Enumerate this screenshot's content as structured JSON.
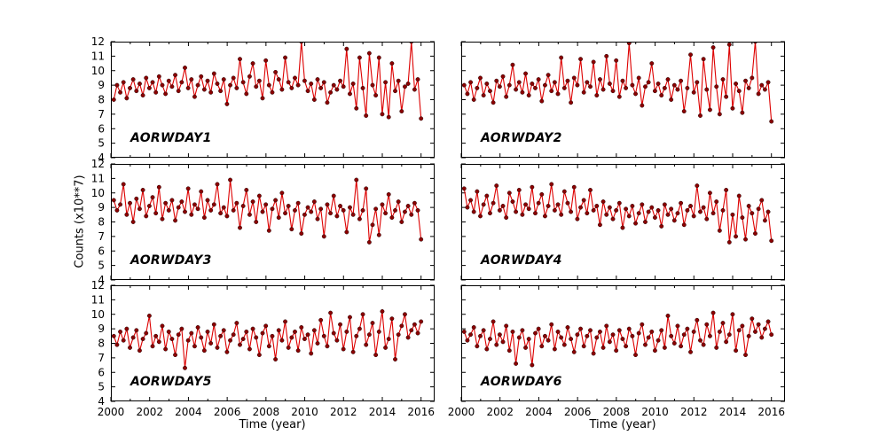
{
  "figure": {
    "xlabel": "Time (year)",
    "ylabel": "Counts (x10**7)",
    "background": "#ffffff",
    "colors": {
      "line": "#dd0000",
      "marker": "#8b0000",
      "marker_edge": "#200000",
      "axis": "#000000"
    }
  },
  "chart_data": {
    "type": "line",
    "x_range": [
      2000.15,
      2016.0
    ],
    "axis": {
      "xlim": [
        2000,
        2016.7
      ],
      "ylim": [
        4,
        12
      ],
      "xticks": [
        2000,
        2002,
        2004,
        2006,
        2008,
        2010,
        2012,
        2014,
        2016
      ],
      "xminor": [
        2001,
        2003,
        2005,
        2007,
        2009,
        2011,
        2013,
        2015
      ],
      "yticks": [
        4,
        5,
        6,
        7,
        8,
        9,
        10,
        11,
        12
      ]
    },
    "panels": [
      {
        "label": "AORWDAY1",
        "values": [
          8.0,
          9.0,
          8.5,
          9.2,
          8.1,
          8.8,
          9.4,
          8.6,
          9.1,
          8.3,
          9.5,
          8.8,
          9.2,
          8.5,
          9.6,
          9.0,
          8.4,
          9.3,
          8.9,
          9.7,
          8.6,
          9.2,
          10.2,
          8.8,
          9.4,
          8.2,
          9.0,
          9.6,
          8.7,
          9.3,
          8.5,
          9.8,
          9.1,
          8.6,
          9.4,
          7.7,
          9.0,
          9.5,
          8.8,
          10.8,
          9.2,
          8.4,
          9.6,
          10.5,
          8.9,
          9.3,
          8.1,
          10.7,
          9.0,
          8.5,
          9.9,
          9.4,
          8.7,
          10.9,
          9.2,
          8.8,
          9.5,
          9.0,
          12.0,
          9.3,
          8.6,
          9.1,
          8.0,
          9.4,
          8.8,
          9.2,
          7.8,
          8.5,
          9.0,
          8.7,
          9.3,
          8.9,
          11.5,
          8.4,
          9.1,
          7.4,
          10.9,
          8.8,
          6.9,
          11.2,
          9.0,
          8.3,
          10.9,
          7.0,
          9.2,
          6.8,
          10.5,
          8.6,
          9.3,
          7.2,
          8.9,
          9.1,
          12.0,
          8.7,
          9.4,
          6.7
        ]
      },
      {
        "label": "AORWDAY2",
        "values": [
          9.0,
          8.4,
          9.2,
          8.0,
          8.8,
          9.5,
          8.3,
          9.1,
          8.6,
          7.8,
          9.3,
          8.9,
          9.6,
          8.2,
          9.0,
          10.4,
          8.7,
          9.2,
          8.5,
          9.8,
          8.3,
          9.1,
          8.8,
          9.4,
          7.9,
          9.0,
          9.7,
          8.6,
          9.2,
          8.4,
          10.9,
          8.8,
          9.3,
          7.8,
          9.5,
          9.0,
          10.8,
          8.5,
          9.2,
          8.9,
          10.6,
          8.3,
          9.4,
          8.7,
          11.0,
          9.1,
          8.6,
          10.7,
          8.2,
          9.3,
          8.8,
          11.9,
          9.0,
          8.4,
          9.5,
          7.6,
          8.9,
          9.2,
          10.5,
          8.6,
          9.1,
          8.3,
          8.8,
          9.4,
          8.0,
          9.0,
          8.7,
          9.3,
          7.2,
          8.8,
          11.1,
          8.5,
          9.2,
          6.9,
          10.8,
          8.7,
          7.3,
          11.6,
          8.9,
          7.0,
          9.4,
          8.2,
          11.8,
          7.4,
          9.1,
          8.6,
          7.1,
          9.3,
          8.8,
          9.5,
          12.0,
          8.4,
          9.0,
          8.7,
          9.2,
          6.5
        ]
      },
      {
        "label": "AORWDAY3",
        "values": [
          9.5,
          8.8,
          9.2,
          10.6,
          8.5,
          9.3,
          8.0,
          9.6,
          8.9,
          10.2,
          8.4,
          9.1,
          9.7,
          8.6,
          10.4,
          8.2,
          9.3,
          8.8,
          9.5,
          8.1,
          9.0,
          9.4,
          8.7,
          10.3,
          8.5,
          9.2,
          8.9,
          10.1,
          8.3,
          9.5,
          8.8,
          9.2,
          10.6,
          8.6,
          9.0,
          8.4,
          10.9,
          8.8,
          9.3,
          7.6,
          9.1,
          10.2,
          8.5,
          9.4,
          8.0,
          9.8,
          8.7,
          9.2,
          7.4,
          8.9,
          9.5,
          8.3,
          10.0,
          8.6,
          9.1,
          7.5,
          8.8,
          9.3,
          7.2,
          8.5,
          9.0,
          8.7,
          9.4,
          8.2,
          8.9,
          7.0,
          9.2,
          8.6,
          9.8,
          8.4,
          9.1,
          8.8,
          7.3,
          9.0,
          8.5,
          10.9,
          8.2,
          8.8,
          10.3,
          6.6,
          7.8,
          8.9,
          7.1,
          9.2,
          8.6,
          9.9,
          8.3,
          8.8,
          9.4,
          8.0,
          8.7,
          9.1,
          8.5,
          9.3,
          8.8,
          6.8
        ]
      },
      {
        "label": "AORWDAY4",
        "values": [
          10.3,
          9.0,
          9.5,
          8.7,
          10.1,
          8.4,
          9.2,
          9.8,
          8.6,
          9.3,
          10.5,
          8.8,
          9.1,
          8.3,
          10.0,
          9.4,
          8.7,
          10.2,
          8.5,
          9.2,
          8.9,
          10.4,
          8.6,
          9.3,
          9.9,
          8.4,
          9.1,
          10.6,
          8.8,
          9.2,
          8.5,
          10.1,
          9.3,
          8.7,
          10.4,
          8.2,
          9.0,
          9.5,
          8.6,
          10.2,
          8.8,
          9.1,
          7.8,
          9.4,
          8.5,
          9.0,
          8.2,
          8.8,
          9.3,
          7.6,
          8.9,
          8.4,
          9.1,
          7.9,
          8.6,
          9.2,
          8.0,
          8.7,
          9.0,
          8.3,
          8.8,
          7.7,
          9.2,
          8.5,
          8.9,
          8.1,
          8.6,
          9.3,
          7.8,
          8.8,
          9.1,
          8.4,
          10.5,
          8.7,
          9.0,
          8.2,
          10.0,
          8.6,
          9.4,
          7.4,
          8.8,
          10.2,
          6.6,
          8.5,
          7.0,
          9.8,
          8.3,
          6.8,
          9.1,
          8.6,
          7.2,
          8.9,
          9.5,
          8.1,
          8.7,
          6.7
        ]
      },
      {
        "label": "AORWDAY5",
        "values": [
          8.5,
          7.9,
          8.8,
          8.2,
          9.0,
          7.7,
          8.4,
          8.9,
          7.5,
          8.3,
          8.7,
          9.9,
          7.8,
          8.5,
          8.1,
          9.2,
          7.6,
          8.8,
          8.3,
          7.2,
          8.6,
          9.0,
          6.3,
          8.2,
          8.7,
          7.8,
          9.1,
          8.4,
          7.5,
          8.8,
          8.0,
          9.3,
          7.7,
          8.5,
          8.9,
          7.4,
          8.2,
          8.6,
          9.4,
          7.9,
          8.3,
          8.8,
          7.6,
          9.0,
          8.4,
          7.2,
          8.7,
          9.2,
          7.8,
          8.5,
          6.9,
          8.9,
          8.2,
          9.5,
          7.7,
          8.4,
          8.8,
          7.5,
          9.1,
          8.3,
          8.6,
          7.3,
          8.9,
          8.0,
          9.6,
          8.5,
          7.8,
          10.1,
          8.7,
          8.2,
          9.3,
          7.6,
          8.8,
          9.8,
          7.4,
          8.5,
          9.0,
          10.0,
          7.9,
          8.6,
          9.4,
          7.2,
          8.8,
          10.2,
          7.7,
          8.3,
          9.7,
          6.9,
          8.6,
          9.2,
          10.0,
          8.4,
          8.9,
          9.3,
          8.7,
          9.5
        ]
      },
      {
        "label": "AORWDAY6",
        "values": [
          8.8,
          8.2,
          8.6,
          9.1,
          7.8,
          8.5,
          8.9,
          7.6,
          8.3,
          9.5,
          7.9,
          8.6,
          8.1,
          9.2,
          7.5,
          8.8,
          6.6,
          8.4,
          8.9,
          7.7,
          8.3,
          6.5,
          8.7,
          9.0,
          7.8,
          8.5,
          8.2,
          9.3,
          7.6,
          8.8,
          8.4,
          7.9,
          9.1,
          8.3,
          7.4,
          8.6,
          9.0,
          7.8,
          8.5,
          8.9,
          7.3,
          8.4,
          8.8,
          7.7,
          9.2,
          8.1,
          8.6,
          7.5,
          8.9,
          8.3,
          7.8,
          9.0,
          8.5,
          7.2,
          8.7,
          9.3,
          7.9,
          8.4,
          8.8,
          7.5,
          8.2,
          8.9,
          7.7,
          9.9,
          8.5,
          8.0,
          9.2,
          7.8,
          8.6,
          9.0,
          7.4,
          8.8,
          9.6,
          8.2,
          7.9,
          9.3,
          8.5,
          10.1,
          7.7,
          8.8,
          9.4,
          8.1,
          8.6,
          10.0,
          7.5,
          8.9,
          9.2,
          7.2,
          8.5,
          9.7,
          8.8,
          9.3,
          8.4,
          9.0,
          9.5,
          8.6
        ]
      }
    ]
  }
}
